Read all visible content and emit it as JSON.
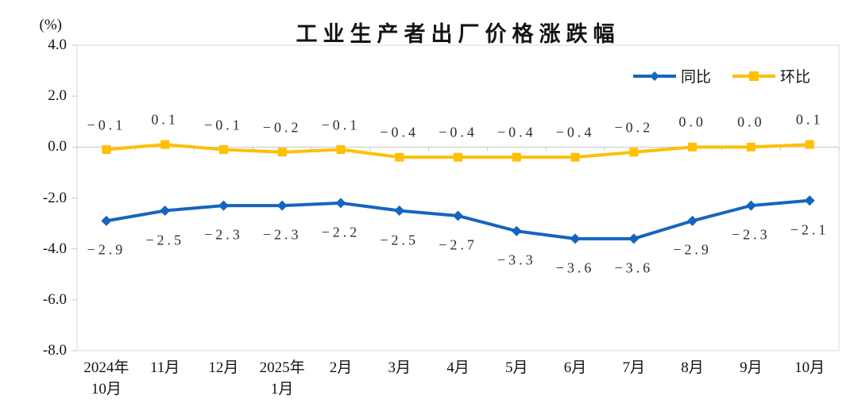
{
  "header": {
    "title": "工业生产者出厂价格涨跌幅",
    "unit_label": "(%)"
  },
  "chart_data": {
    "type": "line",
    "title": "工业生产者出厂价格涨跌幅",
    "ylabel": "(%)",
    "ylim": [
      -8.0,
      4.0
    ],
    "yticks": [
      4.0,
      2.0,
      0.0,
      -2.0,
      -4.0,
      -6.0,
      -8.0
    ],
    "ytick_labels": [
      "4.0",
      "2.0",
      "0.0",
      "-2.0",
      "-4.0",
      "-6.0",
      "-8.0"
    ],
    "categories": [
      "2024年\n10月",
      "11月",
      "12月",
      "2025年\n1月",
      "2月",
      "3月",
      "4月",
      "5月",
      "6月",
      "7月",
      "8月",
      "9月",
      "10月"
    ],
    "grid": false,
    "zero_axis_line": true,
    "legend_position": "top-right-inside",
    "series": [
      {
        "key": "tongbi",
        "name": "同比",
        "color": "#1565C0",
        "marker": "diamond",
        "label_placement": "below",
        "values": [
          -2.9,
          -2.5,
          -2.3,
          -2.3,
          -2.2,
          -2.5,
          -2.7,
          -3.3,
          -3.6,
          -3.6,
          -2.9,
          -2.3,
          -2.1
        ]
      },
      {
        "key": "huanbi",
        "name": "环比",
        "color": "#FFC000",
        "marker": "square",
        "label_placement": "above",
        "values": [
          -0.1,
          0.1,
          -0.1,
          -0.2,
          -0.1,
          -0.4,
          -0.4,
          -0.4,
          -0.4,
          -0.2,
          0.0,
          0.0,
          0.1
        ]
      }
    ],
    "colors": {
      "plot_border": "#D9D9D9",
      "zero_axis": "#C6C6C6",
      "tick": "#C6C6C6",
      "axis_text": "#141414",
      "data_label_text": "#2e2e2e"
    }
  }
}
